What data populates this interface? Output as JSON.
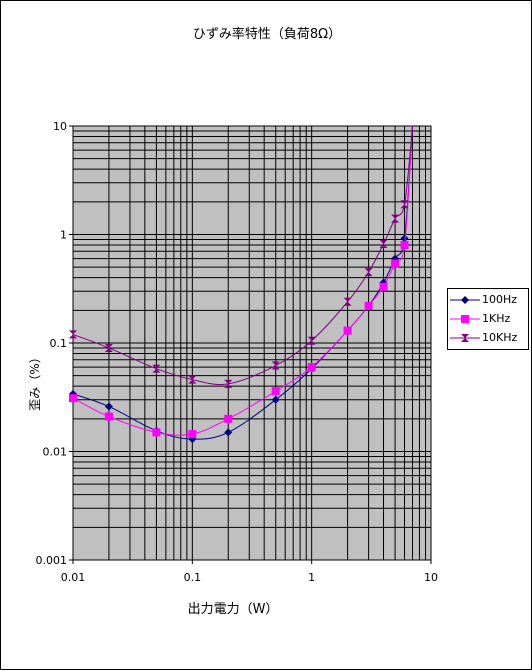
{
  "chart_data": {
    "type": "line",
    "title": "ひずみ率特性（負荷8Ω）",
    "xlabel": "出力電力（W）",
    "ylabel": "歪み（%）",
    "x_scale": "log",
    "y_scale": "log",
    "xlim": [
      0.01,
      10
    ],
    "ylim": [
      0.001,
      10
    ],
    "x_ticks": [
      "0.01",
      "0.1",
      "1",
      "10"
    ],
    "y_ticks": [
      "0.001",
      "0.01",
      "0.1",
      "1",
      "10"
    ],
    "grid": true,
    "legend_position": "right",
    "series": [
      {
        "name": "100Hz",
        "color": "#000080",
        "marker": "diamond",
        "x": [
          0.01,
          0.02,
          0.05,
          0.1,
          0.2,
          0.5,
          1,
          2,
          3,
          4,
          5,
          6,
          7
        ],
        "y": [
          0.034,
          0.026,
          0.0155,
          0.013,
          0.015,
          0.03,
          0.058,
          0.13,
          0.22,
          0.36,
          0.6,
          0.92,
          10
        ]
      },
      {
        "name": "1KHz",
        "color": "#ff00ff",
        "marker": "square",
        "x": [
          0.01,
          0.02,
          0.05,
          0.1,
          0.2,
          0.5,
          1,
          2,
          3,
          4,
          5,
          6,
          7
        ],
        "y": [
          0.031,
          0.021,
          0.015,
          0.0145,
          0.02,
          0.036,
          0.06,
          0.13,
          0.22,
          0.33,
          0.54,
          0.8,
          10
        ]
      },
      {
        "name": "10KHz",
        "color": "#800080",
        "marker": "hourglass",
        "x": [
          0.01,
          0.02,
          0.05,
          0.1,
          0.2,
          0.5,
          1,
          2,
          3,
          4,
          5,
          6,
          7
        ],
        "y": [
          0.12,
          0.09,
          0.058,
          0.046,
          0.042,
          0.062,
          0.105,
          0.24,
          0.45,
          0.82,
          1.4,
          1.9,
          10
        ]
      }
    ]
  }
}
